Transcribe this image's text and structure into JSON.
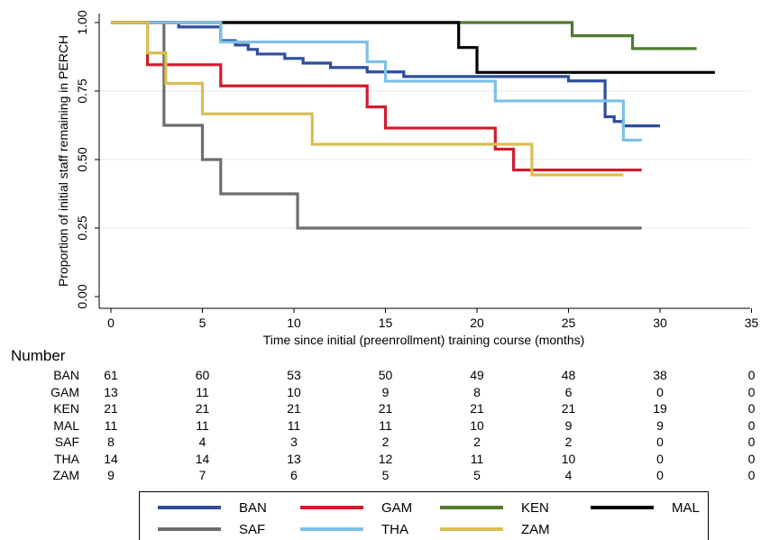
{
  "chart_data": {
    "type": "line",
    "title": "",
    "xlabel": "Time since initial (preenrollment) training course (months)",
    "ylabel": "Proportion of initial staff remaining in PERCH",
    "xlim": [
      0,
      35
    ],
    "ylim": [
      0,
      1
    ],
    "x_ticks": [
      "0",
      "5",
      "10",
      "15",
      "20",
      "25",
      "30",
      "35"
    ],
    "y_ticks": [
      "0.00",
      "0.25",
      "0.50",
      "0.75",
      "1.00"
    ],
    "grid": "horizontal",
    "series": [
      {
        "name": "BAN",
        "color": "#2e4d9c",
        "steps": [
          [
            0,
            1.0
          ],
          [
            3.7,
            0.984
          ],
          [
            6,
            0.934
          ],
          [
            6.8,
            0.918
          ],
          [
            7.5,
            0.902
          ],
          [
            8,
            0.885
          ],
          [
            9.5,
            0.869
          ],
          [
            10.5,
            0.852
          ],
          [
            12,
            0.836
          ],
          [
            14,
            0.82
          ],
          [
            15,
            0.82
          ],
          [
            16,
            0.803
          ],
          [
            25,
            0.787
          ],
          [
            27,
            0.656
          ],
          [
            27.5,
            0.639
          ],
          [
            28,
            0.623
          ],
          [
            30,
            0.623
          ]
        ]
      },
      {
        "name": "GAM",
        "color": "#d01c2c",
        "steps": [
          [
            0,
            1.0
          ],
          [
            2,
            0.846
          ],
          [
            6,
            0.769
          ],
          [
            14,
            0.692
          ],
          [
            15,
            0.615
          ],
          [
            21,
            0.538
          ],
          [
            22,
            0.462
          ],
          [
            29,
            0.462
          ]
        ]
      },
      {
        "name": "KEN",
        "color": "#4e7a2e",
        "steps": [
          [
            0,
            1.0
          ],
          [
            25.2,
            0.952
          ],
          [
            28.5,
            0.905
          ],
          [
            32,
            0.905
          ]
        ]
      },
      {
        "name": "MAL",
        "color": "#000000",
        "steps": [
          [
            0,
            1.0
          ],
          [
            19,
            0.909
          ],
          [
            20,
            0.818
          ],
          [
            33,
            0.818
          ]
        ]
      },
      {
        "name": "SAF",
        "color": "#6e6e6e",
        "steps": [
          [
            0,
            1.0
          ],
          [
            2.9,
            0.625
          ],
          [
            5,
            0.5
          ],
          [
            6,
            0.375
          ],
          [
            10.2,
            0.25
          ],
          [
            29,
            0.25
          ]
        ]
      },
      {
        "name": "THA",
        "color": "#7dbfe8",
        "steps": [
          [
            0,
            1.0
          ],
          [
            6,
            0.929
          ],
          [
            14,
            0.857
          ],
          [
            15,
            0.786
          ],
          [
            21,
            0.714
          ],
          [
            27,
            0.714
          ],
          [
            28,
            0.571
          ],
          [
            29,
            0.571
          ]
        ]
      },
      {
        "name": "ZAM",
        "color": "#d9bf55",
        "steps": [
          [
            0,
            1.0
          ],
          [
            2,
            0.889
          ],
          [
            3,
            0.778
          ],
          [
            5,
            0.667
          ],
          [
            11,
            0.556
          ],
          [
            23,
            0.444
          ],
          [
            28,
            0.444
          ]
        ]
      }
    ],
    "legend_position": "bottom"
  },
  "risk_table": {
    "heading": "Number",
    "times": [
      0,
      5,
      10,
      15,
      20,
      25,
      30,
      35
    ],
    "rows": [
      {
        "name": "BAN",
        "values": [
          "61",
          "60",
          "53",
          "50",
          "49",
          "48",
          "38",
          "0"
        ]
      },
      {
        "name": "GAM",
        "values": [
          "13",
          "11",
          "10",
          "9",
          "8",
          "6",
          "0",
          "0"
        ]
      },
      {
        "name": "KEN",
        "values": [
          "21",
          "21",
          "21",
          "21",
          "21",
          "21",
          "19",
          "0"
        ]
      },
      {
        "name": "MAL",
        "values": [
          "11",
          "11",
          "11",
          "11",
          "10",
          "9",
          "9",
          "0"
        ]
      },
      {
        "name": "SAF",
        "values": [
          "8",
          "4",
          "3",
          "2",
          "2",
          "2",
          "0",
          "0"
        ]
      },
      {
        "name": "THA",
        "values": [
          "14",
          "14",
          "13",
          "12",
          "11",
          "10",
          "0",
          "0"
        ]
      },
      {
        "name": "ZAM",
        "values": [
          "9",
          "7",
          "6",
          "5",
          "5",
          "4",
          "0",
          "0"
        ]
      }
    ]
  },
  "legend": {
    "items": [
      "BAN",
      "GAM",
      "KEN",
      "MAL",
      "SAF",
      "THA",
      "ZAM"
    ]
  }
}
